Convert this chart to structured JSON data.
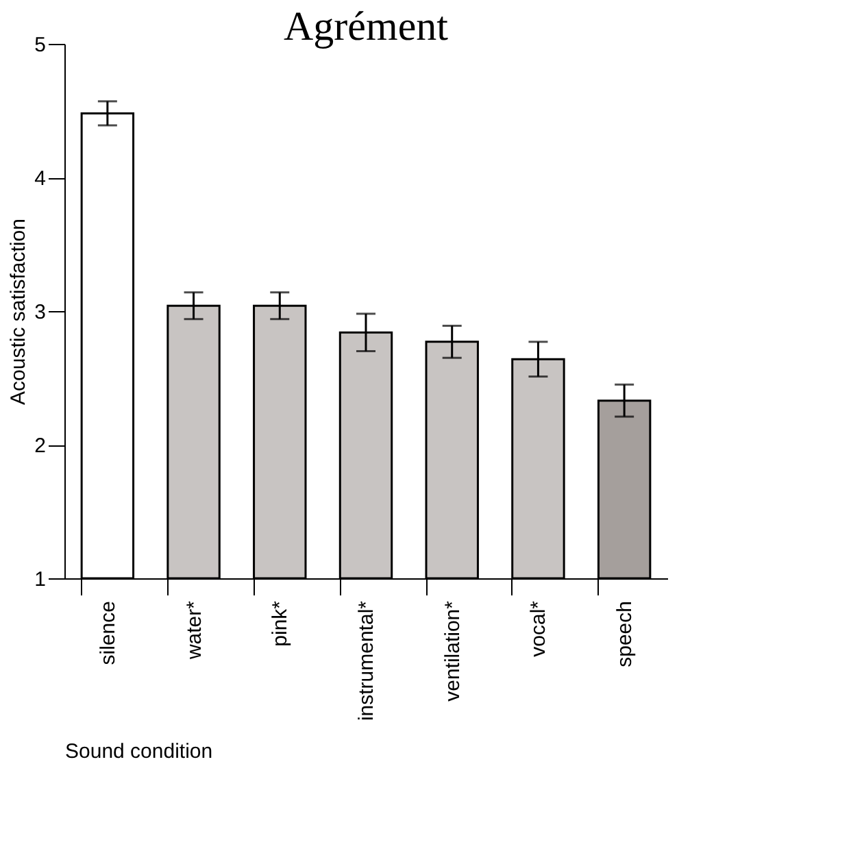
{
  "chart_data": {
    "type": "bar",
    "title": "Agrément",
    "xlabel": "Sound condition",
    "ylabel": "Acoustic satisfaction",
    "categories": [
      "silence",
      "water*",
      "pink*",
      "instrumental*",
      "ventilation*",
      "vocal*",
      "speech"
    ],
    "values": [
      4.48,
      3.04,
      3.04,
      2.84,
      2.77,
      2.64,
      2.33
    ],
    "errors": [
      0.09,
      0.1,
      0.1,
      0.14,
      0.12,
      0.13,
      0.12
    ],
    "colors": [
      "#ffffff",
      "#c8c4c2",
      "#c8c4c2",
      "#c8c4c2",
      "#c8c4c2",
      "#c8c4c2",
      "#a59f9c"
    ],
    "ylim": [
      1,
      5
    ],
    "yticks": [
      1,
      2,
      3,
      4,
      5
    ],
    "grid": false
  }
}
